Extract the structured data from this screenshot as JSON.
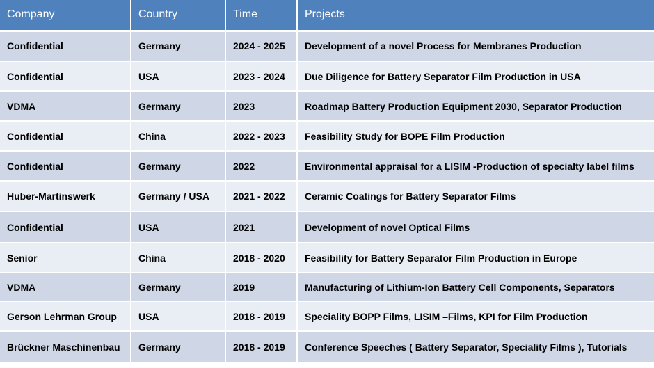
{
  "table": {
    "headers": [
      "Company",
      "Country",
      "Time",
      "Projects"
    ],
    "rows": [
      [
        "Confidential",
        "Germany",
        "2024 - 2025",
        "Development of a novel Process for Membranes Production"
      ],
      [
        "Confidential",
        "USA",
        "2023 - 2024",
        "Due Diligence for Battery Separator Film Production in USA"
      ],
      [
        "VDMA",
        "Germany",
        "2023",
        "Roadmap Battery Production Equipment 2030, Separator Production"
      ],
      [
        "Confidential",
        "China",
        "2022 - 2023",
        "Feasibility Study for BOPE Film Production"
      ],
      [
        "Confidential",
        "Germany",
        "2022",
        "Environmental appraisal for a LISIM -Production of specialty label films"
      ],
      [
        "Huber-Martinswerk",
        "Germany / USA",
        "2021 - 2022",
        "Ceramic Coatings for Battery Separator Films"
      ],
      [
        "Confidential",
        "USA",
        "2021",
        "Development of novel Optical Films"
      ],
      [
        "Senior",
        "China",
        "2018 - 2020",
        "Feasibility for Battery Separator Film Production in Europe"
      ],
      [
        "VDMA",
        "Germany",
        "2019",
        "Manufacturing of Lithium-Ion Battery Cell Components, Separators"
      ],
      [
        "Gerson Lehrman Group",
        "USA",
        "2018 - 2019",
        "Speciality BOPP Films, LISIM –Films, KPI for Film Production"
      ],
      [
        "Brückner Maschinenbau",
        "Germany",
        "2018 - 2019",
        "Conference Speeches ( Battery Separator, Speciality Films ), Tutorials"
      ]
    ]
  }
}
